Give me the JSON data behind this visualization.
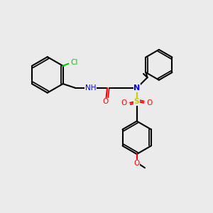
{
  "background_color": "#ebebeb",
  "figsize": [
    3.0,
    3.0
  ],
  "dpi": 100,
  "colors": {
    "C": "#000000",
    "N": "#0000ff",
    "O": "#ff0000",
    "S": "#cccc00",
    "Cl": "#00cc00",
    "H": "#888888"
  },
  "lw": 1.5,
  "lw_aromatic": 1.0
}
